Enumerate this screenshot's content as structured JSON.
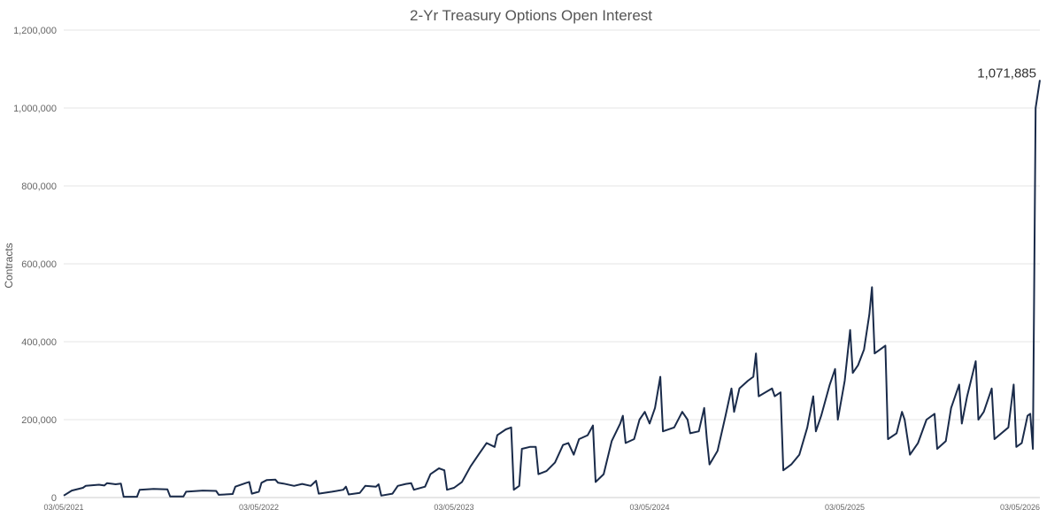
{
  "chart_data": {
    "type": "line",
    "title": "2-Yr Treasury Options Open Interest",
    "xlabel": "",
    "ylabel": "Contracts",
    "ylim": [
      0,
      1200000
    ],
    "xlim": [
      "03/05/2021",
      "03/05/2026"
    ],
    "grid": true,
    "legend": "none",
    "series_color": "#1a2b4a",
    "y_ticks": [
      {
        "value": 0,
        "label": "0"
      },
      {
        "value": 200000,
        "label": "200,000"
      },
      {
        "value": 400000,
        "label": "400,000"
      },
      {
        "value": 600000,
        "label": "600,000"
      },
      {
        "value": 800000,
        "label": "800,000"
      },
      {
        "value": 1000000,
        "label": "1,000,000"
      },
      {
        "value": 1200000,
        "label": "1,200,000"
      }
    ],
    "x_ticks": [
      {
        "value": "2021-03-05",
        "label": "03/05/2021"
      },
      {
        "value": "2022-03-05",
        "label": "03/05/2022"
      },
      {
        "value": "2023-03-05",
        "label": "03/05/2023"
      },
      {
        "value": "2024-03-05",
        "label": "03/05/2024"
      },
      {
        "value": "2025-03-05",
        "label": "03/05/2025"
      },
      {
        "value": "2026-03-05",
        "label": "03/05/2026"
      }
    ],
    "annotation": {
      "x": "2026-03-05",
      "y": 1071885,
      "label": "1,071,885"
    },
    "series": [
      {
        "points": [
          [
            "2021-03-05",
            5000
          ],
          [
            "2021-03-20",
            18000
          ],
          [
            "2021-04-10",
            25000
          ],
          [
            "2021-04-15",
            30000
          ],
          [
            "2021-05-10",
            33000
          ],
          [
            "2021-05-20",
            31000
          ],
          [
            "2021-05-25",
            37000
          ],
          [
            "2021-06-10",
            34000
          ],
          [
            "2021-06-20",
            36000
          ],
          [
            "2021-06-25",
            2000
          ],
          [
            "2021-07-20",
            2000
          ],
          [
            "2021-07-25",
            20000
          ],
          [
            "2021-08-20",
            22000
          ],
          [
            "2021-09-15",
            21000
          ],
          [
            "2021-09-20",
            3000
          ],
          [
            "2021-10-15",
            3000
          ],
          [
            "2021-10-20",
            15000
          ],
          [
            "2021-11-20",
            18000
          ],
          [
            "2021-12-15",
            17000
          ],
          [
            "2021-12-20",
            7000
          ],
          [
            "2022-01-15",
            9000
          ],
          [
            "2022-01-20",
            28000
          ],
          [
            "2022-02-10",
            38000
          ],
          [
            "2022-02-15",
            40000
          ],
          [
            "2022-02-20",
            10000
          ],
          [
            "2022-03-05",
            15000
          ],
          [
            "2022-03-10",
            38000
          ],
          [
            "2022-03-20",
            45000
          ],
          [
            "2022-04-05",
            46000
          ],
          [
            "2022-04-10",
            38000
          ],
          [
            "2022-04-20",
            36000
          ],
          [
            "2022-05-10",
            30000
          ],
          [
            "2022-05-25",
            35000
          ],
          [
            "2022-06-10",
            30000
          ],
          [
            "2022-06-20",
            43000
          ],
          [
            "2022-06-25",
            10000
          ],
          [
            "2022-07-20",
            15000
          ],
          [
            "2022-08-10",
            20000
          ],
          [
            "2022-08-15",
            28000
          ],
          [
            "2022-08-20",
            8000
          ],
          [
            "2022-09-10",
            12000
          ],
          [
            "2022-09-20",
            30000
          ],
          [
            "2022-10-10",
            28000
          ],
          [
            "2022-10-15",
            34000
          ],
          [
            "2022-10-20",
            5000
          ],
          [
            "2022-11-10",
            10000
          ],
          [
            "2022-11-20",
            30000
          ],
          [
            "2022-12-05",
            35000
          ],
          [
            "2022-12-15",
            37000
          ],
          [
            "2022-12-20",
            20000
          ],
          [
            "2023-01-10",
            28000
          ],
          [
            "2023-01-20",
            60000
          ],
          [
            "2023-02-05",
            75000
          ],
          [
            "2023-02-15",
            70000
          ],
          [
            "2023-02-20",
            20000
          ],
          [
            "2023-03-05",
            25000
          ],
          [
            "2023-03-20",
            40000
          ],
          [
            "2023-04-05",
            80000
          ],
          [
            "2023-04-20",
            110000
          ],
          [
            "2023-05-05",
            140000
          ],
          [
            "2023-05-20",
            130000
          ],
          [
            "2023-05-25",
            160000
          ],
          [
            "2023-06-10",
            175000
          ],
          [
            "2023-06-20",
            180000
          ],
          [
            "2023-06-25",
            20000
          ],
          [
            "2023-07-05",
            30000
          ],
          [
            "2023-07-10",
            125000
          ],
          [
            "2023-07-25",
            130000
          ],
          [
            "2023-08-05",
            130000
          ],
          [
            "2023-08-10",
            60000
          ],
          [
            "2023-08-25",
            68000
          ],
          [
            "2023-09-10",
            90000
          ],
          [
            "2023-09-25",
            135000
          ],
          [
            "2023-10-05",
            140000
          ],
          [
            "2023-10-15",
            110000
          ],
          [
            "2023-10-25",
            150000
          ],
          [
            "2023-11-10",
            160000
          ],
          [
            "2023-11-20",
            185000
          ],
          [
            "2023-11-25",
            40000
          ],
          [
            "2023-12-10",
            60000
          ],
          [
            "2023-12-25",
            145000
          ],
          [
            "2024-01-10",
            190000
          ],
          [
            "2024-01-15",
            210000
          ],
          [
            "2024-01-20",
            140000
          ],
          [
            "2024-02-05",
            150000
          ],
          [
            "2024-02-15",
            200000
          ],
          [
            "2024-02-25",
            220000
          ],
          [
            "2024-03-05",
            190000
          ],
          [
            "2024-03-15",
            230000
          ],
          [
            "2024-03-25",
            310000
          ],
          [
            "2024-03-30",
            170000
          ],
          [
            "2024-04-20",
            180000
          ],
          [
            "2024-05-05",
            220000
          ],
          [
            "2024-05-15",
            200000
          ],
          [
            "2024-05-20",
            165000
          ],
          [
            "2024-06-05",
            170000
          ],
          [
            "2024-06-15",
            230000
          ],
          [
            "2024-06-20",
            150000
          ],
          [
            "2024-06-25",
            85000
          ],
          [
            "2024-07-10",
            120000
          ],
          [
            "2024-07-25",
            210000
          ],
          [
            "2024-08-05",
            280000
          ],
          [
            "2024-08-10",
            220000
          ],
          [
            "2024-08-20",
            280000
          ],
          [
            "2024-09-05",
            300000
          ],
          [
            "2024-09-15",
            310000
          ],
          [
            "2024-09-20",
            370000
          ],
          [
            "2024-09-25",
            260000
          ],
          [
            "2024-10-20",
            280000
          ],
          [
            "2024-10-25",
            260000
          ],
          [
            "2024-11-05",
            270000
          ],
          [
            "2024-11-10",
            70000
          ],
          [
            "2024-11-25",
            85000
          ],
          [
            "2024-12-10",
            110000
          ],
          [
            "2024-12-25",
            180000
          ],
          [
            "2025-01-05",
            260000
          ],
          [
            "2025-01-10",
            170000
          ],
          [
            "2025-01-20",
            210000
          ],
          [
            "2025-02-05",
            290000
          ],
          [
            "2025-02-15",
            330000
          ],
          [
            "2025-02-20",
            200000
          ],
          [
            "2025-03-05",
            300000
          ],
          [
            "2025-03-15",
            430000
          ],
          [
            "2025-03-20",
            320000
          ],
          [
            "2025-03-30",
            340000
          ],
          [
            "2025-04-10",
            380000
          ],
          [
            "2025-04-20",
            470000
          ],
          [
            "2025-04-25",
            540000
          ],
          [
            "2025-04-30",
            370000
          ],
          [
            "2025-05-10",
            380000
          ],
          [
            "2025-05-20",
            390000
          ],
          [
            "2025-05-25",
            150000
          ],
          [
            "2025-06-10",
            165000
          ],
          [
            "2025-06-20",
            220000
          ],
          [
            "2025-06-25",
            200000
          ],
          [
            "2025-07-05",
            110000
          ],
          [
            "2025-07-20",
            140000
          ],
          [
            "2025-08-05",
            200000
          ],
          [
            "2025-08-20",
            215000
          ],
          [
            "2025-08-25",
            125000
          ],
          [
            "2025-09-10",
            145000
          ],
          [
            "2025-09-20",
            230000
          ],
          [
            "2025-10-05",
            290000
          ],
          [
            "2025-10-10",
            190000
          ],
          [
            "2025-10-20",
            260000
          ],
          [
            "2025-11-05",
            350000
          ],
          [
            "2025-11-10",
            200000
          ],
          [
            "2025-11-20",
            220000
          ],
          [
            "2025-12-05",
            280000
          ],
          [
            "2025-12-10",
            150000
          ],
          [
            "2026-01-05",
            180000
          ],
          [
            "2026-01-15",
            290000
          ],
          [
            "2026-01-20",
            130000
          ],
          [
            "2026-01-30",
            140000
          ],
          [
            "2026-02-10",
            210000
          ],
          [
            "2026-02-15",
            215000
          ],
          [
            "2026-02-20",
            125000
          ],
          [
            "2026-02-25",
            1000000
          ],
          [
            "2026-03-05",
            1071885
          ]
        ]
      }
    ]
  }
}
